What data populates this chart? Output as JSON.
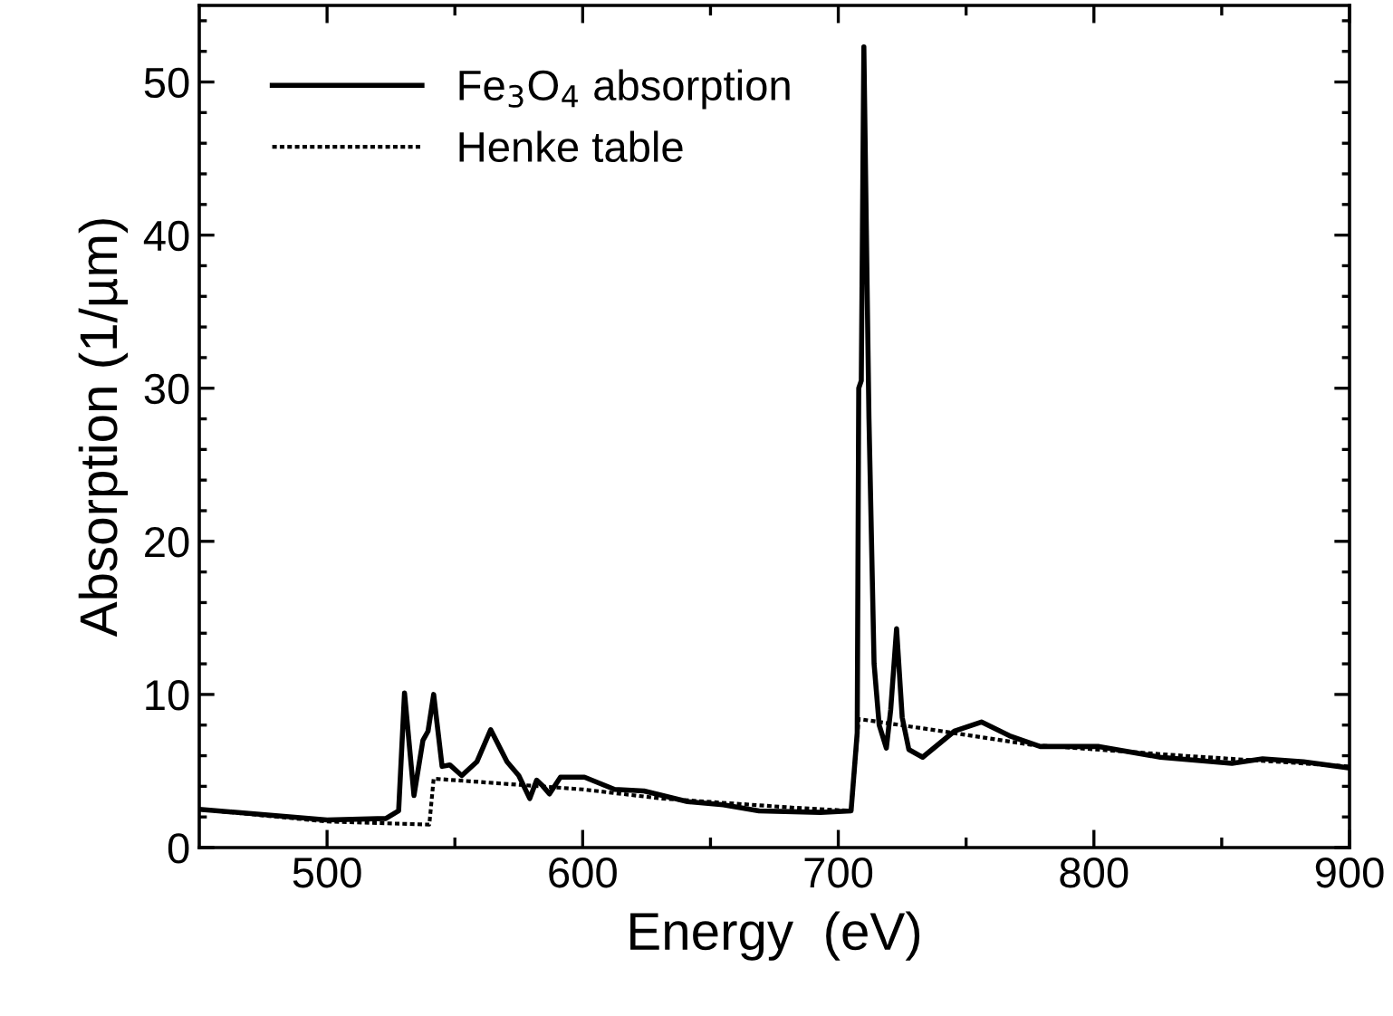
{
  "chart_data": {
    "type": "line",
    "xlabel": "Energy  (eV)",
    "ylabel": "Absorption (1/µm)",
    "xlim": [
      450,
      900
    ],
    "ylim": [
      0,
      55
    ],
    "xticks": [
      500,
      {
        "value": 550,
        "label": null
      },
      600,
      {
        "value": 650,
        "label": null
      },
      700,
      {
        "value": 750,
        "label": null
      },
      800,
      {
        "value": 850,
        "label": null
      },
      900
    ],
    "yticks": [
      0,
      {
        "value": 2,
        "label": null
      },
      {
        "value": 4,
        "label": null
      },
      {
        "value": 6,
        "label": null
      },
      {
        "value": 8,
        "label": null
      },
      10,
      {
        "value": 12,
        "label": null
      },
      {
        "value": 14,
        "label": null
      },
      {
        "value": 16,
        "label": null
      },
      {
        "value": 18,
        "label": null
      },
      20,
      {
        "value": 22,
        "label": null
      },
      {
        "value": 24,
        "label": null
      },
      {
        "value": 26,
        "label": null
      },
      {
        "value": 28,
        "label": null
      },
      30,
      {
        "value": 32,
        "label": null
      },
      {
        "value": 34,
        "label": null
      },
      {
        "value": 36,
        "label": null
      },
      {
        "value": 38,
        "label": null
      },
      40,
      {
        "value": 42,
        "label": null
      },
      {
        "value": 44,
        "label": null
      },
      {
        "value": 46,
        "label": null
      },
      {
        "value": 48,
        "label": null
      },
      50,
      {
        "value": 52,
        "label": null
      },
      {
        "value": 54,
        "label": null
      }
    ],
    "grid": false,
    "legend": "top left",
    "series": [
      {
        "name": "Fe$_{3}$O$_{4}$ absorption",
        "color": "#000000",
        "line_style": "solid",
        "x": [
          450,
          500,
          523,
          528,
          530.3,
          534,
          537.5,
          539.5,
          541.7,
          545,
          548,
          552.7,
          558.6,
          564,
          570.4,
          575,
          579.3,
          582,
          584.5,
          587,
          591.3,
          600.7,
          612.5,
          624,
          641,
          655,
          669,
          693,
          705,
          707.4,
          708,
          709,
          710,
          711,
          712,
          714,
          716,
          718.8,
          720.5,
          722.8,
          725,
          727.6,
          733,
          745.4,
          756,
          767,
          779,
          802,
          826,
          854,
          866,
          882,
          900
        ],
        "values": [
          2.5,
          1.8,
          1.9,
          2.4,
          10.1,
          3.4,
          7.0,
          7.6,
          10.0,
          5.3,
          5.4,
          4.7,
          5.6,
          7.7,
          5.6,
          4.7,
          3.2,
          4.4,
          4.0,
          3.5,
          4.6,
          4.6,
          3.8,
          3.7,
          3.0,
          2.8,
          2.4,
          2.3,
          2.4,
          7.5,
          30.0,
          30.5,
          52.3,
          40.0,
          28.0,
          12.0,
          8.0,
          6.5,
          9.0,
          14.3,
          8.5,
          6.4,
          5.9,
          7.6,
          8.2,
          7.3,
          6.6,
          6.6,
          5.9,
          5.5,
          5.8,
          5.6,
          5.2
        ]
      },
      {
        "name": "Henke table",
        "color": "#000000",
        "line_style": "dotted",
        "x": [
          450,
          500,
          540,
          541.7,
          600,
          631,
          683,
          705,
          708,
          740.6,
          776,
          835,
          900
        ],
        "values": [
          2.5,
          1.7,
          1.5,
          4.5,
          3.8,
          3.2,
          2.6,
          2.4,
          8.4,
          7.6,
          6.7,
          6.0,
          5.3
        ]
      }
    ]
  }
}
